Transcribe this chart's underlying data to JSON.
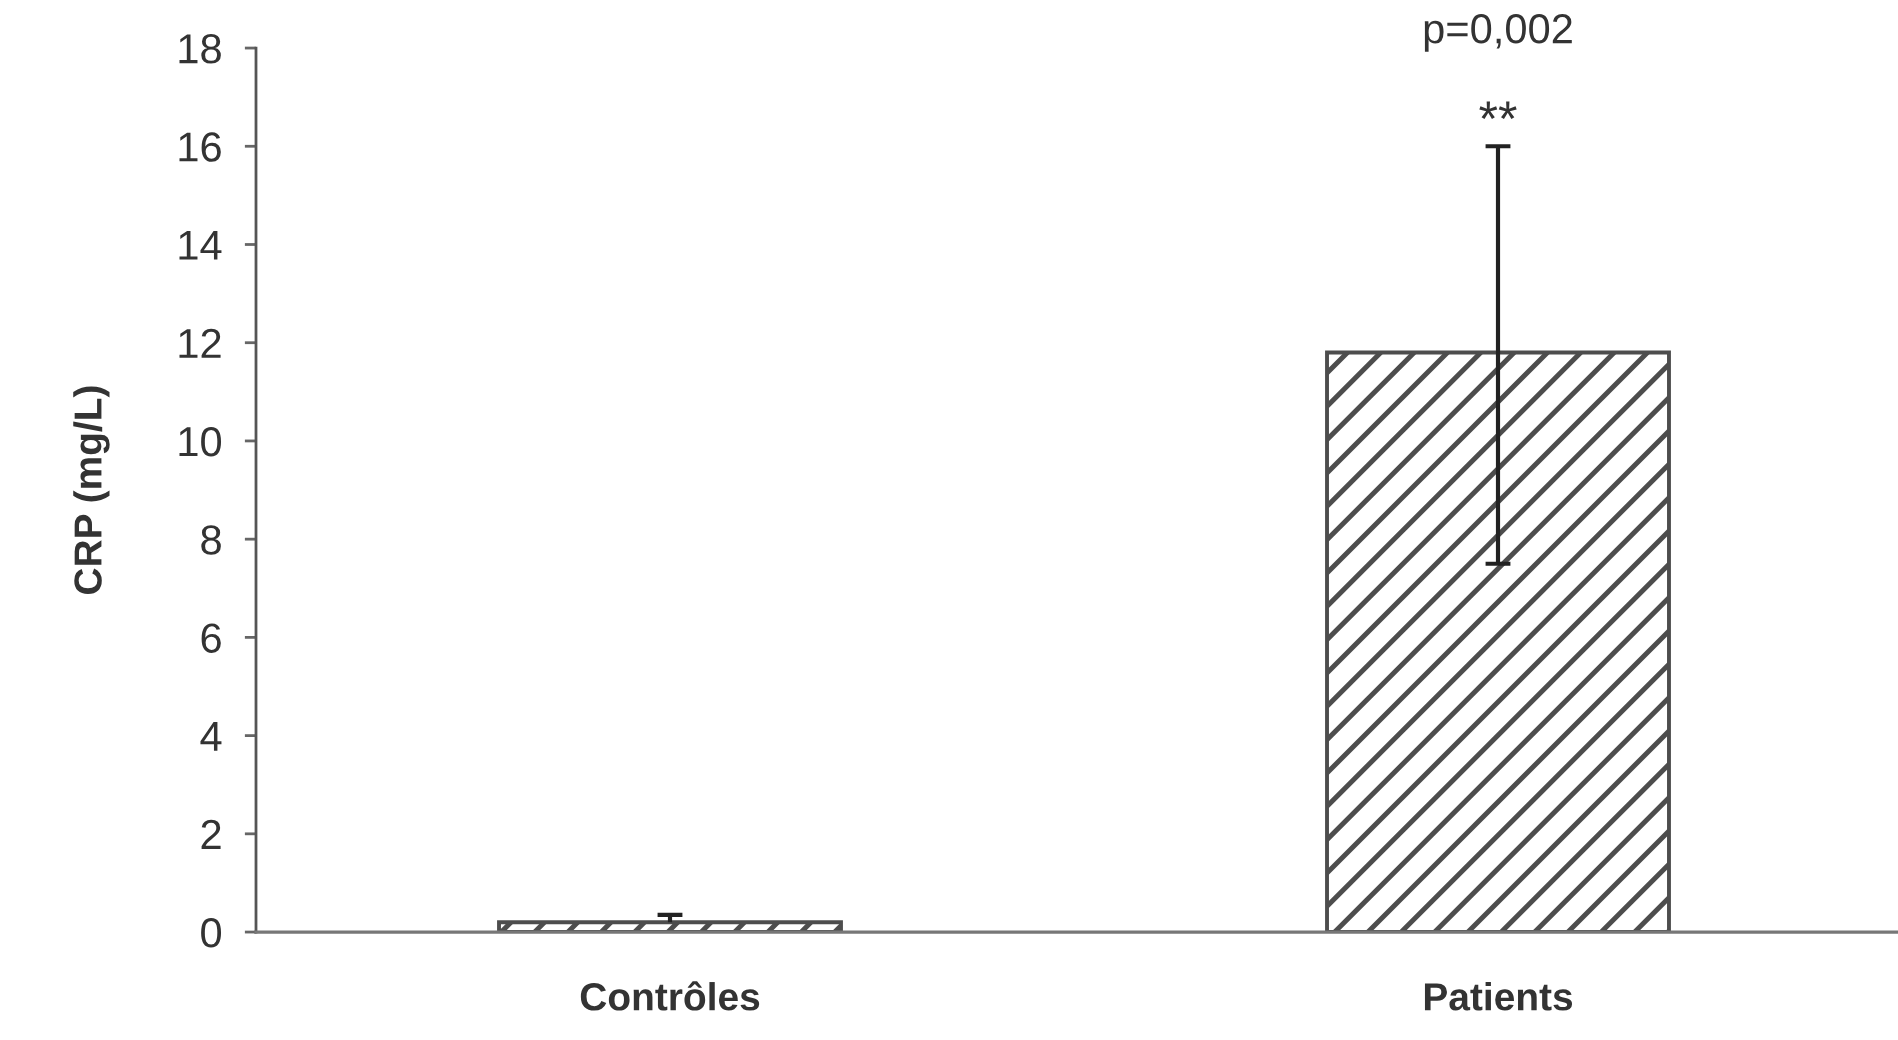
{
  "chart_data": {
    "type": "bar",
    "ylabel": "CRP (mg/L)",
    "categories": [
      "Contrôles",
      "Patients"
    ],
    "values": [
      0.2,
      11.8
    ],
    "errors": [
      [
        0.2,
        0.35
      ],
      [
        7.5,
        16.0
      ]
    ],
    "color": "#4d4d4d",
    "ylim": [
      0,
      18
    ],
    "yticks": [
      0,
      2,
      4,
      6,
      8,
      10,
      12,
      14,
      16,
      18
    ],
    "grid": false,
    "legend": false,
    "annotations": [
      "**",
      "p=0,002"
    ]
  }
}
